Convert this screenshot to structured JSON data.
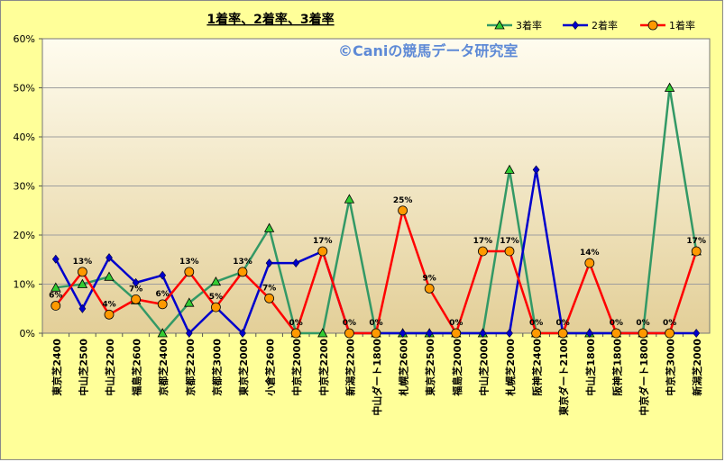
{
  "chart_data": {
    "type": "line",
    "title": "1着率、2着率、3着率",
    "watermark": "©Caniの競馬データ研究室",
    "ylim": [
      0,
      60
    ],
    "yticks": [
      "0%",
      "10%",
      "20%",
      "30%",
      "40%",
      "50%",
      "60%"
    ],
    "ytick_values": [
      0,
      10,
      20,
      30,
      40,
      50,
      60
    ],
    "categories": [
      "東京芝2400",
      "中山芝2500",
      "中山芝2200",
      "福島芝2600",
      "京都芝2400",
      "京都芝2200",
      "京都芝3000",
      "東京芝2000",
      "小倉芝2600",
      "中京芝2000",
      "中京芝2200",
      "新潟芝2200",
      "中山ダート1800",
      "札幌芝2600",
      "東京芝2500",
      "福島芝2000",
      "中山芝2000",
      "札幌芝2000",
      "阪神芝2400",
      "東京ダート2100",
      "中山芝1800",
      "阪神芝1800",
      "中京ダート1800",
      "中京芝3000",
      "新潟芝2000"
    ],
    "series": [
      {
        "name": "3着率",
        "color": "#339966",
        "marker": "triangle",
        "marker_fill": "#33cc33",
        "values": [
          9.3,
          10,
          11.5,
          6.7,
          0,
          6.2,
          10.5,
          12.5,
          21.4,
          0,
          0,
          27.3,
          0,
          0,
          0,
          0,
          0,
          33.3,
          0,
          0,
          0,
          0,
          0,
          50,
          16.7
        ]
      },
      {
        "name": "2着率",
        "color": "#0000cc",
        "marker": "diamond",
        "marker_fill": "#0000cc",
        "values": [
          15.1,
          5,
          15.4,
          10.3,
          11.8,
          0,
          5.3,
          0,
          14.3,
          14.3,
          16.7,
          0,
          0,
          0,
          0,
          0,
          0,
          0,
          33.3,
          0,
          0,
          0,
          0,
          0,
          0
        ]
      },
      {
        "name": "1着率",
        "color": "#ff0000",
        "marker": "circle",
        "marker_fill": "#ff9900",
        "values": [
          5.6,
          12.5,
          3.8,
          6.9,
          5.9,
          12.5,
          5.3,
          12.5,
          7.1,
          0,
          16.7,
          0,
          0,
          25,
          9.1,
          0,
          16.7,
          16.7,
          0,
          0,
          14.3,
          0,
          0,
          0,
          16.7
        ],
        "labels": [
          "6%",
          "13%",
          "4%",
          "7%",
          "6%",
          "13%",
          "5%",
          "13%",
          "7%",
          "0%",
          "17%",
          "0%",
          "0%",
          "25%",
          "9%",
          "0%",
          "17%",
          "17%",
          "0%",
          "0%",
          "14%",
          "0%",
          "0%",
          "0%",
          "17%"
        ]
      }
    ],
    "legend_position": "top-right",
    "grid": "horizontal",
    "colors": {
      "frame": "#ffff99",
      "plot_top": "#fffcef",
      "plot_bottom": "#e3cf98",
      "gridline": "#9e9e9e",
      "watermark": "#5e8ad6"
    }
  }
}
